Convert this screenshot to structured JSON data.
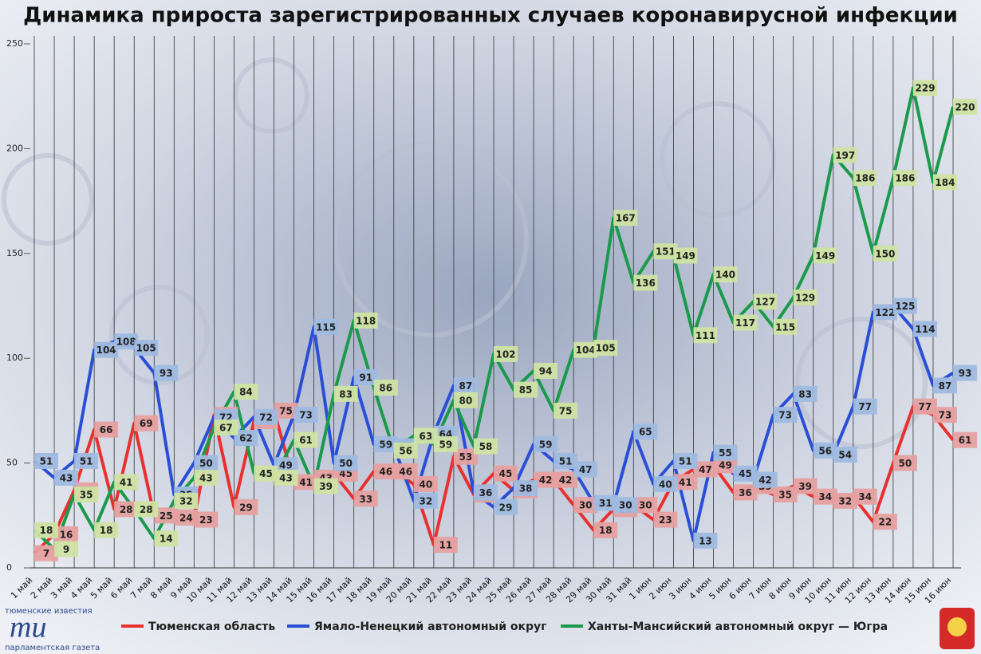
{
  "chart_data": {
    "type": "line",
    "title": "Динамика прироста зарегистрированных случаев коронавирусной инфекции",
    "categories": [
      "1 май",
      "2 май",
      "3 май",
      "4 май",
      "5 май",
      "6 май",
      "7 май",
      "8 май",
      "9 май",
      "10 май",
      "11 май",
      "12 май",
      "13 май",
      "14 май",
      "15 май",
      "16 май",
      "17 май",
      "18 май",
      "19 май",
      "20 май",
      "21 май",
      "22 май",
      "23 май",
      "24 май",
      "25 май",
      "26 май",
      "27 май",
      "28 май",
      "29 май",
      "30 май",
      "31 май",
      "1 июн",
      "2 июн",
      "3 июн",
      "4 июн",
      "5 июн",
      "6 июн",
      "7 июн",
      "8 июн",
      "9 июн",
      "10 июн",
      "11 июн",
      "12 июн",
      "13 июн",
      "14 июн",
      "15 июн",
      "16 июн"
    ],
    "series": [
      {
        "name": "Тюменская область",
        "color": "#e8312f",
        "values": [
          7,
          16,
          37,
          66,
          28,
          69,
          25,
          24,
          23,
          73,
          29,
          70,
          75,
          41,
          43,
          45,
          33,
          46,
          46,
          40,
          11,
          53,
          35,
          45,
          37,
          42,
          42,
          30,
          18,
          28,
          30,
          23,
          41,
          47,
          49,
          36,
          39,
          35,
          39,
          34,
          32,
          34,
          22,
          50,
          77,
          73,
          61
        ]
      },
      {
        "name": "Ямало-Ненецкий автономный округ",
        "color": "#2a4fd6",
        "values": [
          51,
          43,
          51,
          104,
          108,
          105,
          93,
          35,
          50,
          72,
          62,
          72,
          49,
          73,
          115,
          50,
          91,
          59,
          58,
          32,
          64,
          87,
          36,
          29,
          38,
          59,
          51,
          47,
          31,
          30,
          65,
          40,
          51,
          13,
          55,
          45,
          42,
          73,
          83,
          56,
          54,
          77,
          122,
          125,
          114,
          87,
          93
        ]
      },
      {
        "name": "Ханты-Мансийский автономный округ — Югра",
        "color": "#1a9a4a",
        "values": [
          18,
          9,
          35,
          18,
          41,
          28,
          14,
          32,
          43,
          67,
          84,
          45,
          43,
          61,
          39,
          83,
          118,
          86,
          56,
          63,
          59,
          80,
          58,
          102,
          85,
          94,
          75,
          104,
          105,
          167,
          136,
          151,
          149,
          111,
          140,
          117,
          127,
          115,
          129,
          149,
          197,
          186,
          150,
          186,
          229,
          184,
          220
        ]
      }
    ],
    "ylim": [
      0,
      250
    ],
    "yticks": [
      0,
      50,
      100,
      150,
      200,
      250
    ],
    "grid": true,
    "logo": {
      "top": "тюменские известия",
      "mark": "ти",
      "bottom": "парламентская газета"
    }
  }
}
